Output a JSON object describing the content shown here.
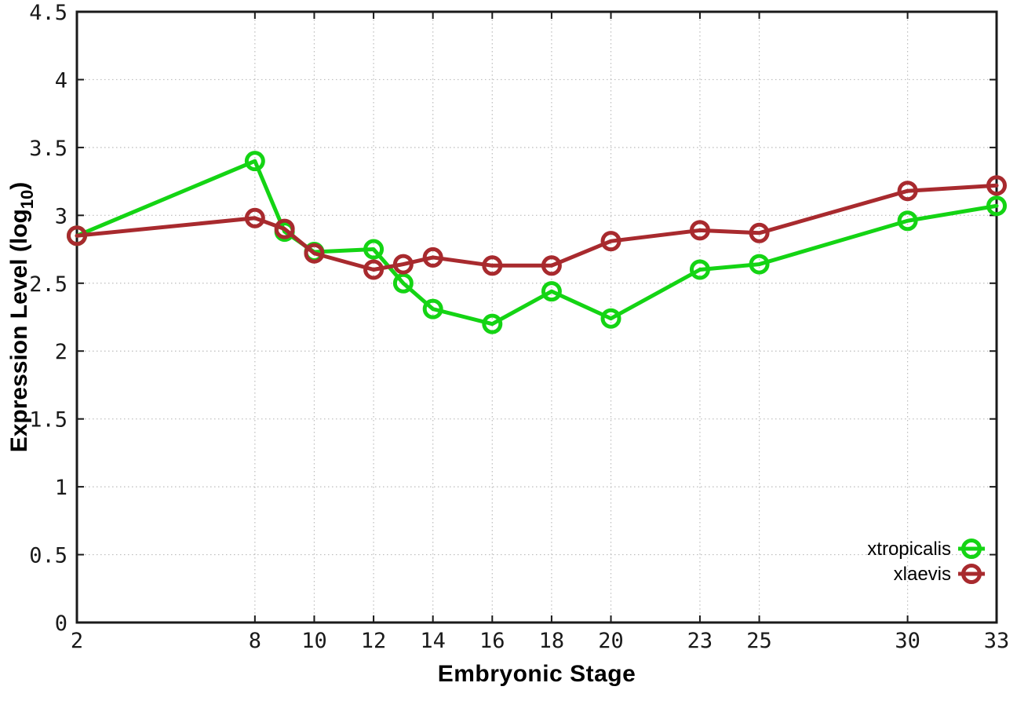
{
  "chart_data": {
    "type": "line",
    "title": "",
    "xlabel": "Embryonic Stage",
    "ylabel": "Expression Level (log10)",
    "xlim": [
      2,
      33
    ],
    "ylim": [
      0,
      4.5
    ],
    "x_ticks": [
      2,
      8,
      10,
      12,
      14,
      16,
      18,
      20,
      23,
      25,
      30,
      33
    ],
    "y_ticks": [
      0,
      0.5,
      1,
      1.5,
      2,
      2.5,
      3,
      3.5,
      4,
      4.5
    ],
    "grid": true,
    "grid_style": "dotted",
    "legend_position": "bottom-right-inside",
    "marker": "open-circle",
    "x": [
      2,
      8,
      9,
      10,
      12,
      13,
      14,
      16,
      18,
      20,
      23,
      25,
      30,
      33
    ],
    "series": [
      {
        "name": "xtropicalis",
        "color": "#14d414",
        "values": [
          2.85,
          3.4,
          2.88,
          2.73,
          2.75,
          2.5,
          2.31,
          2.2,
          2.44,
          2.24,
          2.6,
          2.64,
          2.96,
          3.07
        ]
      },
      {
        "name": "xlaevis",
        "color": "#a82a2e",
        "values": [
          2.85,
          2.98,
          2.9,
          2.72,
          2.6,
          2.64,
          2.69,
          2.63,
          2.63,
          2.81,
          2.89,
          2.87,
          3.18,
          3.22
        ]
      }
    ],
    "colors": {
      "border": "#1a1a1a",
      "grid": "#bcbcbc",
      "tick_label": "#1a1a1a",
      "background": "#ffffff"
    }
  }
}
